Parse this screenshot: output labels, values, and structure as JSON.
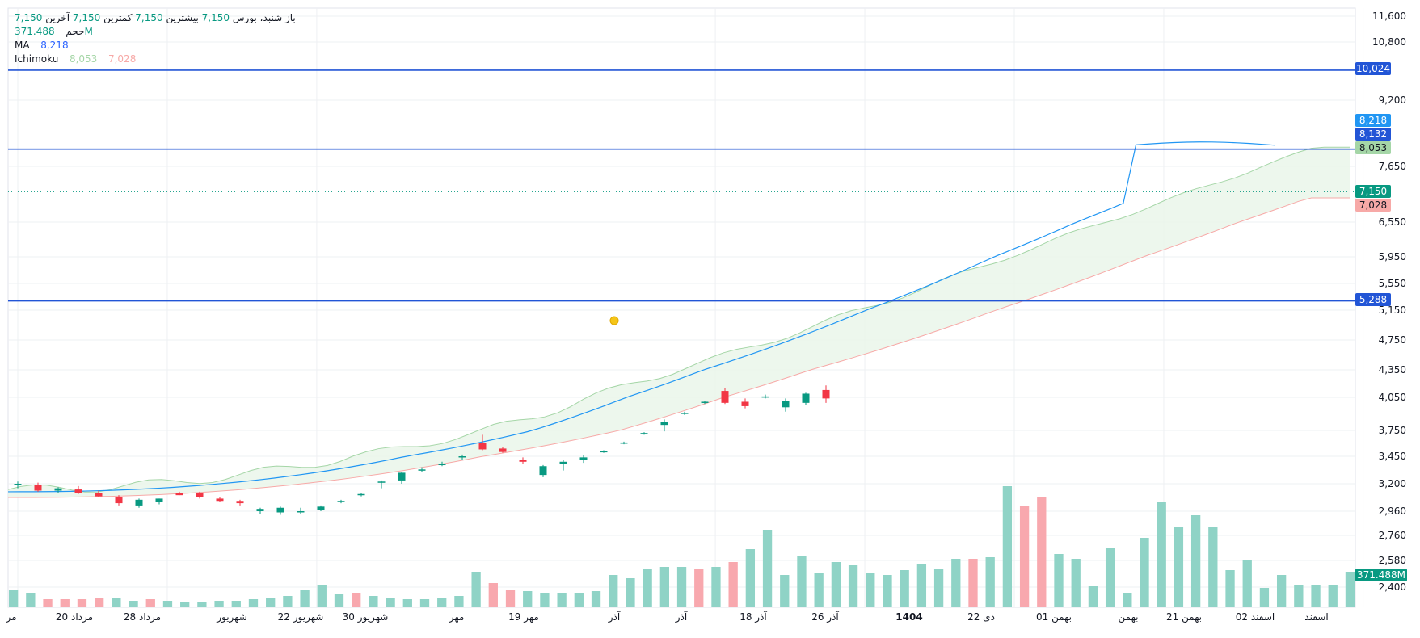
{
  "ohlc": {
    "label": "باز شنبد، بورس",
    "open": "7,150",
    "high_label": "بیشترین",
    "high": "7,150",
    "low_label": "کمترین",
    "low": "7,150",
    "close_label": "آخرین",
    "close": "7,150"
  },
  "indicators": {
    "volume_label": "حجم",
    "volume_value": "371.488M",
    "ma_label": "MA",
    "ma_value": "8,218",
    "ichimoku_label": "Ichimoku",
    "ichimoku_a": "8,053",
    "ichimoku_b": "7,028"
  },
  "colors": {
    "up": "#089981",
    "down": "#f23645",
    "vol_up": "#8fd3c6",
    "vol_down": "#f8a8ae",
    "ma": "#2196f3",
    "hline": "#2255d6",
    "cloud_a": "#a5d6a7",
    "cloud_b": "#f7a9a7",
    "cloud_fill": "#e8f5e9",
    "grid": "#eef0f3",
    "axis_text": "#131722"
  },
  "chart_data": {
    "type": "candlestick",
    "x_labels": [
      {
        "i": 0,
        "text": "مر"
      },
      {
        "i": 3,
        "text": "20 مرداد"
      },
      {
        "i": 6,
        "text": "28 مرداد"
      },
      {
        "i": 10,
        "text": "شهریور"
      },
      {
        "i": 14,
        "text": "22 شهریور"
      },
      {
        "i": 17,
        "text": "30 شهریور"
      },
      {
        "i": 20,
        "text": "مهر"
      },
      {
        "i": 23,
        "text": "19 مهر"
      },
      {
        "i": 27,
        "text": "آذر"
      },
      {
        "i": 30,
        "text": "آذر"
      },
      {
        "i": 33,
        "text": "18 آذر"
      },
      {
        "i": 36,
        "text": "26 آذر"
      },
      {
        "i": 41,
        "text": "1404"
      },
      {
        "i": 44,
        "text": "22 دی"
      },
      {
        "i": 47,
        "text": "01 بهمن"
      },
      {
        "i": 50,
        "text": "بهمن"
      },
      {
        "i": 53,
        "text": "21 بهمن"
      },
      {
        "i": 56,
        "text": "02 اسفند"
      },
      {
        "i": 59,
        "text": "اسفند"
      }
    ],
    "y_ticks": [
      "11,600",
      "10,800",
      "9,200",
      "7,650",
      "6,550",
      "5,950",
      "5,550",
      "5,150",
      "4,750",
      "4,350",
      "4,050",
      "3,750",
      "3,450",
      "3,200",
      "2,960",
      "2,760",
      "2,580",
      "2,400"
    ],
    "candles": [
      {
        "o": 3190,
        "h": 3220,
        "l": 3160,
        "c": 3200
      },
      {
        "o": 3190,
        "h": 3210,
        "l": 3130,
        "c": 3140
      },
      {
        "o": 3140,
        "h": 3170,
        "l": 3120,
        "c": 3160
      },
      {
        "o": 3150,
        "h": 3180,
        "l": 3110,
        "c": 3120
      },
      {
        "o": 3120,
        "h": 3140,
        "l": 3080,
        "c": 3090
      },
      {
        "o": 3080,
        "h": 3100,
        "l": 3010,
        "c": 3030
      },
      {
        "o": 3010,
        "h": 3070,
        "l": 2990,
        "c": 3060
      },
      {
        "o": 3040,
        "h": 3070,
        "l": 3020,
        "c": 3070
      },
      {
        "o": 3120,
        "h": 3130,
        "l": 3100,
        "c": 3100
      },
      {
        "o": 3120,
        "h": 3130,
        "l": 3070,
        "c": 3080
      },
      {
        "o": 3070,
        "h": 3080,
        "l": 3040,
        "c": 3050
      },
      {
        "o": 3050,
        "h": 3060,
        "l": 3010,
        "c": 3030
      },
      {
        "o": 2960,
        "h": 2990,
        "l": 2940,
        "c": 2980
      },
      {
        "o": 2950,
        "h": 3000,
        "l": 2930,
        "c": 2990
      },
      {
        "o": 2950,
        "h": 2990,
        "l": 2940,
        "c": 2960
      },
      {
        "o": 2970,
        "h": 3010,
        "l": 2960,
        "c": 3000
      },
      {
        "o": 3040,
        "h": 3060,
        "l": 3030,
        "c": 3050
      },
      {
        "o": 3100,
        "h": 3120,
        "l": 3090,
        "c": 3110
      },
      {
        "o": 3210,
        "h": 3230,
        "l": 3160,
        "c": 3220
      },
      {
        "o": 3230,
        "h": 3310,
        "l": 3200,
        "c": 3300
      },
      {
        "o": 3320,
        "h": 3350,
        "l": 3310,
        "c": 3330
      },
      {
        "o": 3370,
        "h": 3400,
        "l": 3360,
        "c": 3380
      },
      {
        "o": 3440,
        "h": 3470,
        "l": 3420,
        "c": 3450
      },
      {
        "o": 3600,
        "h": 3700,
        "l": 3520,
        "c": 3530
      },
      {
        "o": 3540,
        "h": 3560,
        "l": 3490,
        "c": 3500
      },
      {
        "o": 3420,
        "h": 3440,
        "l": 3380,
        "c": 3400
      },
      {
        "o": 3280,
        "h": 3370,
        "l": 3260,
        "c": 3360
      },
      {
        "o": 3380,
        "h": 3420,
        "l": 3320,
        "c": 3400
      },
      {
        "o": 3420,
        "h": 3460,
        "l": 3390,
        "c": 3440
      },
      {
        "o": 3500,
        "h": 3520,
        "l": 3490,
        "c": 3510
      },
      {
        "o": 3600,
        "h": 3620,
        "l": 3590,
        "c": 3610
      },
      {
        "o": 3710,
        "h": 3730,
        "l": 3700,
        "c": 3720
      },
      {
        "o": 3800,
        "h": 3850,
        "l": 3740,
        "c": 3830
      },
      {
        "o": 3900,
        "h": 3920,
        "l": 3890,
        "c": 3910
      },
      {
        "o": 4000,
        "h": 4020,
        "l": 3990,
        "c": 4010
      },
      {
        "o": 4120,
        "h": 4150,
        "l": 3990,
        "c": 4000
      },
      {
        "o": 4010,
        "h": 4040,
        "l": 3950,
        "c": 3970
      },
      {
        "o": 4050,
        "h": 4080,
        "l": 4040,
        "c": 4060
      },
      {
        "o": 3960,
        "h": 4040,
        "l": 3920,
        "c": 4020
      },
      {
        "o": 4000,
        "h": 4100,
        "l": 3980,
        "c": 4090
      },
      {
        "o": 4130,
        "h": 4180,
        "l": 4000,
        "c": 4040
      }
    ],
    "volume_labels": {
      "max": "371.488M"
    }
  }
}
